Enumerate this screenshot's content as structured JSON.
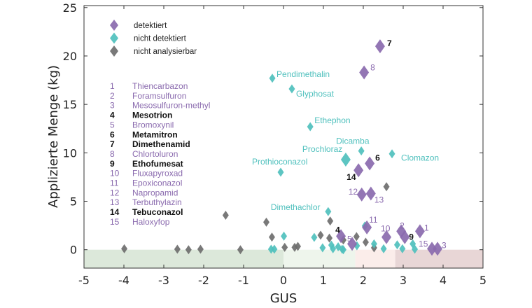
{
  "chart_data": {
    "type": "scatter",
    "xlabel": "GUS",
    "ylabel": "Applizierte Menge (kg)",
    "xlim": [
      -5,
      5
    ],
    "ylim": [
      -1.9,
      25.2
    ],
    "xticks": [
      "-5",
      "-4",
      "-3",
      "-2",
      "-1",
      "0",
      "1",
      "2",
      "3",
      "4",
      "5"
    ],
    "yticks": [
      "0",
      "5",
      "10",
      "15",
      "20",
      "25"
    ],
    "grid": false,
    "colors": {
      "detektiert": "#8a6aae",
      "nicht detektiert": "#4fc0bd",
      "nicht analysierbar": "#6e6e6e",
      "bold_label": "#111111"
    },
    "background_bands": [
      {
        "x": [
          -5,
          0
        ],
        "color": "#dce8da"
      },
      {
        "x": [
          0,
          1.8
        ],
        "color": "#eef5ec"
      },
      {
        "x": [
          1.8,
          2.8
        ],
        "color": "#fbedea"
      },
      {
        "x": [
          2.8,
          5
        ],
        "color": "#e8d6d6"
      }
    ],
    "legend": {
      "placement": "top-left",
      "entries": [
        "detektiert",
        "nicht detektiert",
        "nicht analysierbar"
      ]
    },
    "compound_list": [
      {
        "num": "1",
        "name": "Thiencarbazon",
        "bold": false
      },
      {
        "num": "2",
        "name": "Foramsulfuron",
        "bold": false
      },
      {
        "num": "3",
        "name": "Mesosulfuron-methyl",
        "bold": false
      },
      {
        "num": "4",
        "name": "Mesotrion",
        "bold": true
      },
      {
        "num": "5",
        "name": "Bromoxynil",
        "bold": false
      },
      {
        "num": "6",
        "name": "Metamitron",
        "bold": true
      },
      {
        "num": "7",
        "name": "Dimethenamid",
        "bold": true
      },
      {
        "num": "8",
        "name": "Chlortoluron",
        "bold": false
      },
      {
        "num": "9",
        "name": "Ethofumesat",
        "bold": true
      },
      {
        "num": "10",
        "name": "Fluxapyroxad",
        "bold": false
      },
      {
        "num": "11",
        "name": "Epoxiconazol",
        "bold": false
      },
      {
        "num": "12",
        "name": "Napropamid",
        "bold": false
      },
      {
        "num": "13",
        "name": "Terbuthylazin",
        "bold": false
      },
      {
        "num": "14",
        "name": "Tebuconazol",
        "bold": true
      },
      {
        "num": "15",
        "name": "Haloxyfop",
        "bold": false
      }
    ],
    "series": [
      {
        "name": "nicht analysierbar",
        "points": [
          {
            "x": -3.99,
            "y": 0.1
          },
          {
            "x": -2.66,
            "y": 0.05
          },
          {
            "x": -2.38,
            "y": 0
          },
          {
            "x": -2.08,
            "y": 0.05
          },
          {
            "x": -1.08,
            "y": 0
          },
          {
            "x": -1.45,
            "y": 3.56
          },
          {
            "x": -0.43,
            "y": 2.84
          },
          {
            "x": -0.29,
            "y": 1.3
          },
          {
            "x": 0.03,
            "y": 0.24
          },
          {
            "x": 0.28,
            "y": 0.24
          },
          {
            "x": 0.36,
            "y": 0.34
          },
          {
            "x": 0.93,
            "y": 1.5
          },
          {
            "x": 1.15,
            "y": 1.2
          },
          {
            "x": 1.17,
            "y": 2.96
          },
          {
            "x": 1.5,
            "y": 1.0
          },
          {
            "x": 1.83,
            "y": 1.35
          },
          {
            "x": 2.06,
            "y": 0.77
          },
          {
            "x": 2.27,
            "y": 0.2
          },
          {
            "x": 2.58,
            "y": 6.5
          }
        ]
      },
      {
        "name": "nicht detektiert",
        "points": [
          {
            "x": -0.28,
            "y": 17.7,
            "label": "Pendimethalin"
          },
          {
            "x": 0.21,
            "y": 16.6,
            "label": "Glyphosat"
          },
          {
            "x": 0.67,
            "y": 12.7,
            "label": "Ethephon"
          },
          {
            "x": 1.95,
            "y": 10.2,
            "label": "Dicamba"
          },
          {
            "x": 1.56,
            "y": 9.3,
            "label": "Prochloraz"
          },
          {
            "x": 2.72,
            "y": 9.9,
            "label": "Clomazon"
          },
          {
            "x": -0.07,
            "y": 8.0,
            "label": "Prothioconazol"
          },
          {
            "x": 1.12,
            "y": 3.94,
            "label": "Dimethachlor"
          },
          {
            "x": 0.01,
            "y": 1.4
          },
          {
            "x": -0.31,
            "y": 0.05
          },
          {
            "x": -0.23,
            "y": 0.05
          },
          {
            "x": 0.77,
            "y": 1.27
          },
          {
            "x": 0.98,
            "y": 0.2
          },
          {
            "x": 1.2,
            "y": 0.48
          },
          {
            "x": 1.24,
            "y": 0.1
          },
          {
            "x": 1.37,
            "y": 0.3
          },
          {
            "x": 1.47,
            "y": 0.05
          },
          {
            "x": 1.5,
            "y": 0
          },
          {
            "x": 1.84,
            "y": 0.4
          },
          {
            "x": 2.04,
            "y": 2.45
          },
          {
            "x": 2.27,
            "y": 0.6
          },
          {
            "x": 2.51,
            "y": 0.1
          },
          {
            "x": 2.85,
            "y": 0.5
          },
          {
            "x": 2.98,
            "y": 0.1
          },
          {
            "x": 3.24,
            "y": 0.6
          },
          {
            "x": 3.29,
            "y": 0.05
          }
        ]
      },
      {
        "name": "detektiert",
        "points": [
          {
            "x": 2.42,
            "y": 21.0,
            "label": "7",
            "bold": true
          },
          {
            "x": 2.02,
            "y": 18.3,
            "label": "8"
          },
          {
            "x": 2.16,
            "y": 8.9,
            "label": "6",
            "bold": true
          },
          {
            "x": 1.88,
            "y": 8.2,
            "label": "14",
            "bold": true
          },
          {
            "x": 1.96,
            "y": 5.7,
            "label": "12"
          },
          {
            "x": 2.19,
            "y": 5.8,
            "label": "13"
          },
          {
            "x": 2.09,
            "y": 2.3,
            "label": "11"
          },
          {
            "x": 2.58,
            "y": 1.3,
            "label": "10"
          },
          {
            "x": 2.95,
            "y": 1.9,
            "label": "2"
          },
          {
            "x": 3.04,
            "y": 1.3,
            "label": "9",
            "bold": true
          },
          {
            "x": 3.42,
            "y": 1.9,
            "label": "1"
          },
          {
            "x": 3.72,
            "y": 0.1,
            "label": "15"
          },
          {
            "x": 3.86,
            "y": 0.1,
            "label": "3"
          },
          {
            "x": 1.44,
            "y": 1.4,
            "label": "4",
            "bold": true
          },
          {
            "x": 1.72,
            "y": 0.6,
            "label": "5"
          }
        ]
      }
    ]
  }
}
